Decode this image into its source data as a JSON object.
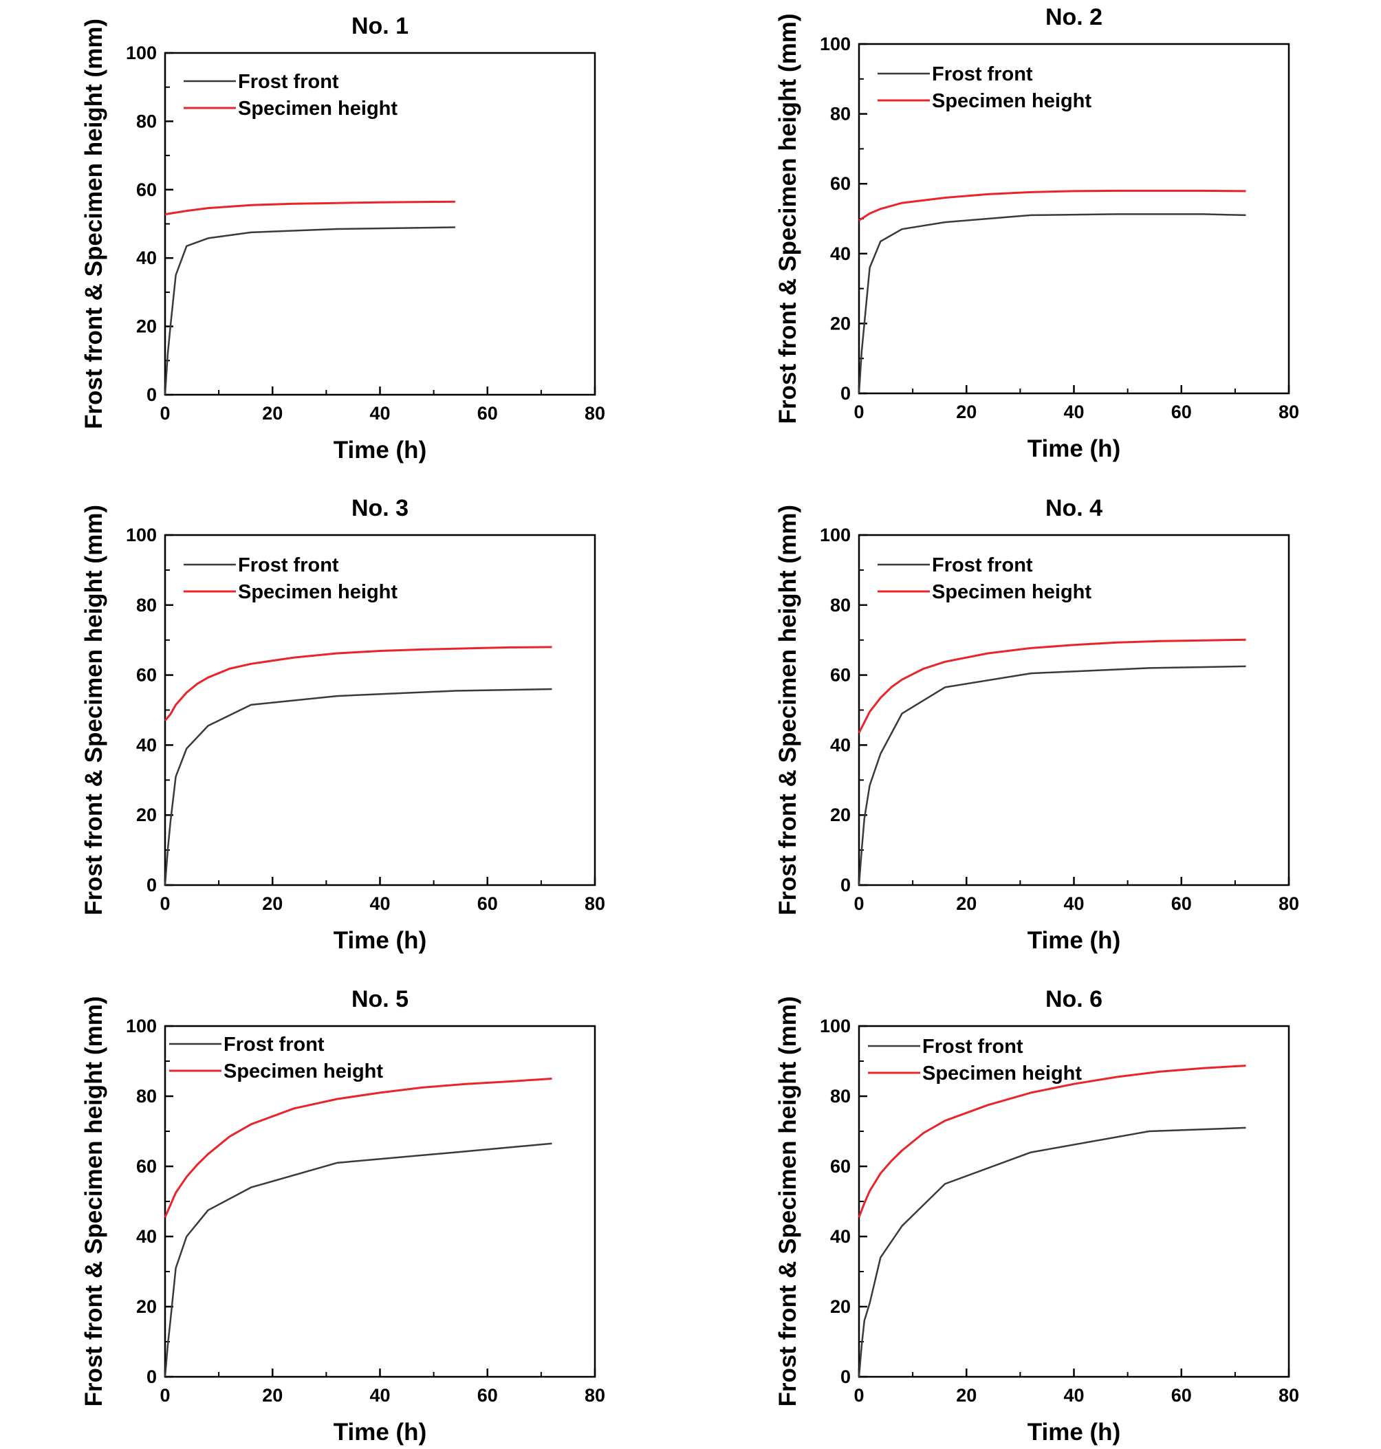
{
  "figure": {
    "colors": {
      "frost_front": "#3a3a3a",
      "specimen_height": "#e8252a",
      "axes": "#000000"
    }
  },
  "chart_data": [
    {
      "type": "line",
      "title": "No. 1",
      "xlabel": "Time (h)",
      "ylabel": "Frost front & Specimen height (mm)",
      "xlim": [
        0,
        80
      ],
      "ylim": [
        0,
        100
      ],
      "xticks": [
        0,
        20,
        40,
        60,
        80
      ],
      "yticks": [
        0,
        20,
        40,
        60,
        80,
        100
      ],
      "grid": false,
      "legend_position": "top-left",
      "series": [
        {
          "name": "Frost front",
          "color": "#3a3a3a",
          "x": [
            0,
            0.5,
            1,
            2,
            4,
            8,
            16,
            32,
            54
          ],
          "y": [
            0,
            12,
            20,
            35,
            43.5,
            45.8,
            47.5,
            48.5,
            49
          ]
        },
        {
          "name": "Specimen height",
          "color": "#e8252a",
          "x": [
            0,
            2,
            4,
            8,
            16,
            24,
            32,
            40,
            54
          ],
          "y": [
            52.8,
            53.3,
            53.8,
            54.6,
            55.5,
            55.9,
            56.1,
            56.3,
            56.5
          ]
        }
      ]
    },
    {
      "type": "line",
      "title": "No. 2",
      "xlabel": "Time (h)",
      "ylabel": "Frost front & Specimen height (mm)",
      "xlim": [
        0,
        80
      ],
      "ylim": [
        0,
        100
      ],
      "xticks": [
        0,
        20,
        40,
        60,
        80
      ],
      "yticks": [
        0,
        20,
        40,
        60,
        80,
        100
      ],
      "grid": false,
      "legend_position": "top-left",
      "series": [
        {
          "name": "Frost front",
          "color": "#3a3a3a",
          "x": [
            0,
            0.5,
            1,
            2,
            4,
            8,
            16,
            32,
            48,
            64,
            72
          ],
          "y": [
            0,
            12,
            20,
            36,
            43.5,
            47,
            49,
            51,
            51.3,
            51.3,
            51
          ]
        },
        {
          "name": "Specimen height",
          "color": "#e8252a",
          "x": [
            0,
            2,
            4,
            8,
            16,
            24,
            32,
            40,
            48,
            56,
            64,
            72
          ],
          "y": [
            49.5,
            51.5,
            52.8,
            54.5,
            56,
            57,
            57.6,
            57.9,
            58,
            58,
            58,
            57.9
          ]
        }
      ]
    },
    {
      "type": "line",
      "title": "No. 3",
      "xlabel": "Time (h)",
      "ylabel": "Frost front & Specimen height (mm)",
      "xlim": [
        0,
        80
      ],
      "ylim": [
        0,
        100
      ],
      "xticks": [
        0,
        20,
        40,
        60,
        80
      ],
      "yticks": [
        0,
        20,
        40,
        60,
        80,
        100
      ],
      "grid": false,
      "legend_position": "top-left",
      "series": [
        {
          "name": "Frost front",
          "color": "#3a3a3a",
          "x": [
            0,
            0.5,
            1,
            2,
            4,
            8,
            16,
            32,
            54,
            72
          ],
          "y": [
            0,
            10,
            18,
            31,
            39,
            45.5,
            51.5,
            54,
            55.5,
            56
          ]
        },
        {
          "name": "Specimen height",
          "color": "#e8252a",
          "x": [
            0,
            1,
            2,
            4,
            6,
            8,
            12,
            16,
            24,
            32,
            40,
            48,
            56,
            64,
            72
          ],
          "y": [
            47,
            48.8,
            51.5,
            55,
            57.5,
            59.3,
            61.8,
            63.2,
            65,
            66.2,
            66.9,
            67.3,
            67.6,
            67.9,
            68
          ]
        }
      ]
    },
    {
      "type": "line",
      "title": "No. 4",
      "xlabel": "Time (h)",
      "ylabel": "Frost front & Specimen height (mm)",
      "xlim": [
        0,
        80
      ],
      "ylim": [
        0,
        100
      ],
      "xticks": [
        0,
        20,
        40,
        60,
        80
      ],
      "yticks": [
        0,
        20,
        40,
        60,
        80,
        100
      ],
      "grid": false,
      "legend_position": "top-left",
      "series": [
        {
          "name": "Frost front",
          "color": "#3a3a3a",
          "x": [
            0,
            0.5,
            1,
            2,
            4,
            8,
            16,
            32,
            54,
            72
          ],
          "y": [
            0,
            10,
            19,
            28.5,
            37.5,
            49,
            56.5,
            60.5,
            62,
            62.5
          ]
        },
        {
          "name": "Specimen height",
          "color": "#e8252a",
          "x": [
            0,
            1,
            2,
            4,
            6,
            8,
            12,
            16,
            24,
            32,
            40,
            48,
            56,
            64,
            72
          ],
          "y": [
            43.5,
            46.5,
            49.5,
            53.5,
            56.5,
            58.7,
            61.8,
            63.8,
            66.2,
            67.7,
            68.6,
            69.3,
            69.7,
            69.9,
            70.1
          ]
        }
      ]
    },
    {
      "type": "line",
      "title": "No. 5",
      "xlabel": "Time (h)",
      "ylabel": "Frost front & Specimen height (mm)",
      "xlim": [
        0,
        80
      ],
      "ylim": [
        0,
        100
      ],
      "xticks": [
        0,
        20,
        40,
        60,
        80
      ],
      "yticks": [
        0,
        20,
        40,
        60,
        80,
        100
      ],
      "grid": false,
      "legend_position": "top-left",
      "series": [
        {
          "name": "Frost front",
          "color": "#3a3a3a",
          "x": [
            0,
            0.5,
            1,
            2,
            4,
            8,
            16,
            32,
            54,
            72
          ],
          "y": [
            0,
            9,
            16,
            31,
            40,
            47.5,
            54,
            61,
            64,
            66.5
          ]
        },
        {
          "name": "Specimen height",
          "color": "#e8252a",
          "x": [
            0,
            1,
            2,
            4,
            6,
            8,
            12,
            16,
            24,
            32,
            40,
            48,
            56,
            64,
            72
          ],
          "y": [
            45.5,
            49,
            52.5,
            57,
            60.5,
            63.5,
            68.5,
            72,
            76.5,
            79.2,
            81,
            82.5,
            83.5,
            84.2,
            85
          ]
        }
      ]
    },
    {
      "type": "line",
      "title": "No. 6",
      "xlabel": "Time (h)",
      "ylabel": "Frost front & Specimen height (mm)",
      "xlim": [
        0,
        80
      ],
      "ylim": [
        0,
        100
      ],
      "xticks": [
        0,
        20,
        40,
        60,
        80
      ],
      "yticks": [
        0,
        20,
        40,
        60,
        80,
        100
      ],
      "grid": false,
      "legend_position": "top-left",
      "series": [
        {
          "name": "Frost front",
          "color": "#3a3a3a",
          "x": [
            0,
            0.5,
            1,
            2,
            4,
            8,
            16,
            32,
            54,
            72
          ],
          "y": [
            0,
            9,
            16,
            21,
            34,
            43,
            55,
            64,
            70,
            71
          ]
        },
        {
          "name": "Specimen height",
          "color": "#e8252a",
          "x": [
            0,
            1,
            2,
            4,
            6,
            8,
            12,
            16,
            24,
            32,
            40,
            48,
            56,
            64,
            72
          ],
          "y": [
            45.5,
            49.5,
            53,
            58,
            61.5,
            64.5,
            69.5,
            73,
            77.5,
            81,
            83.5,
            85.5,
            87,
            88,
            88.7
          ]
        }
      ]
    }
  ]
}
